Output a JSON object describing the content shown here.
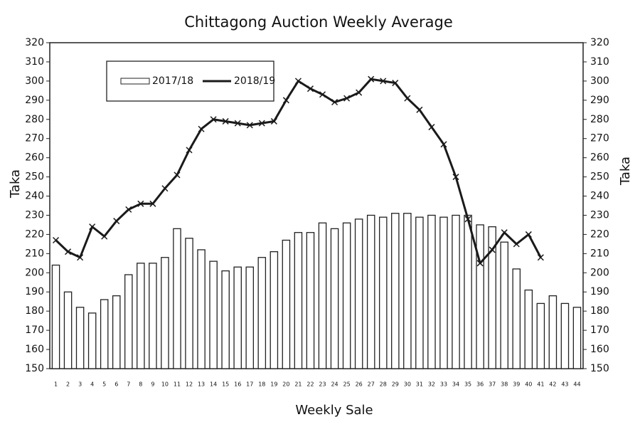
{
  "chart_data": {
    "type": "bar_line",
    "title": "Chittagong Auction Weekly Average",
    "xlabel": "Weekly Sale",
    "ylabel": "Taka",
    "y2label": "Taka",
    "categories": [
      "1",
      "2",
      "3",
      "4",
      "5",
      "6",
      "7",
      "8",
      "9",
      "10",
      "11",
      "12",
      "13",
      "14",
      "15",
      "16",
      "17",
      "18",
      "19",
      "20",
      "21",
      "22",
      "23",
      "24",
      "25",
      "26",
      "27",
      "28",
      "29",
      "30",
      "31",
      "32",
      "33",
      "34",
      "35",
      "36",
      "37",
      "38",
      "39",
      "40",
      "41",
      "42",
      "43",
      "44"
    ],
    "series": [
      {
        "name": "2017/18",
        "type": "bar",
        "color": "#ffffff",
        "values": [
          204,
          190,
          182,
          179,
          186,
          188,
          199,
          205,
          205,
          208,
          223,
          218,
          212,
          206,
          201,
          203,
          203,
          208,
          211,
          217,
          221,
          221,
          226,
          223,
          226,
          228,
          230,
          229,
          231,
          231,
          229,
          230,
          229,
          230,
          230,
          225,
          224,
          216,
          202,
          191,
          184,
          188,
          184,
          182
        ]
      },
      {
        "name": "2018/19",
        "type": "line",
        "color": "#1a1a1a",
        "values": [
          217,
          211,
          208,
          224,
          219,
          227,
          233,
          236,
          236,
          244,
          251,
          264,
          275,
          280,
          279,
          278,
          277,
          278,
          279,
          290,
          300,
          296,
          293,
          289,
          291,
          294,
          301,
          300,
          299,
          291,
          285,
          276,
          267,
          250,
          228,
          205,
          212,
          221,
          215,
          220,
          208,
          null,
          null,
          null
        ]
      }
    ],
    "ylim": [
      150,
      320
    ],
    "yticks": [
      150,
      160,
      170,
      180,
      190,
      200,
      210,
      220,
      230,
      240,
      250,
      260,
      270,
      280,
      290,
      300,
      310,
      320
    ],
    "y2lim": [
      150,
      320
    ],
    "y2ticks": [
      150,
      160,
      170,
      180,
      190,
      200,
      210,
      220,
      230,
      240,
      250,
      260,
      270,
      280,
      290,
      300,
      310,
      320
    ],
    "legend": "upper left"
  }
}
